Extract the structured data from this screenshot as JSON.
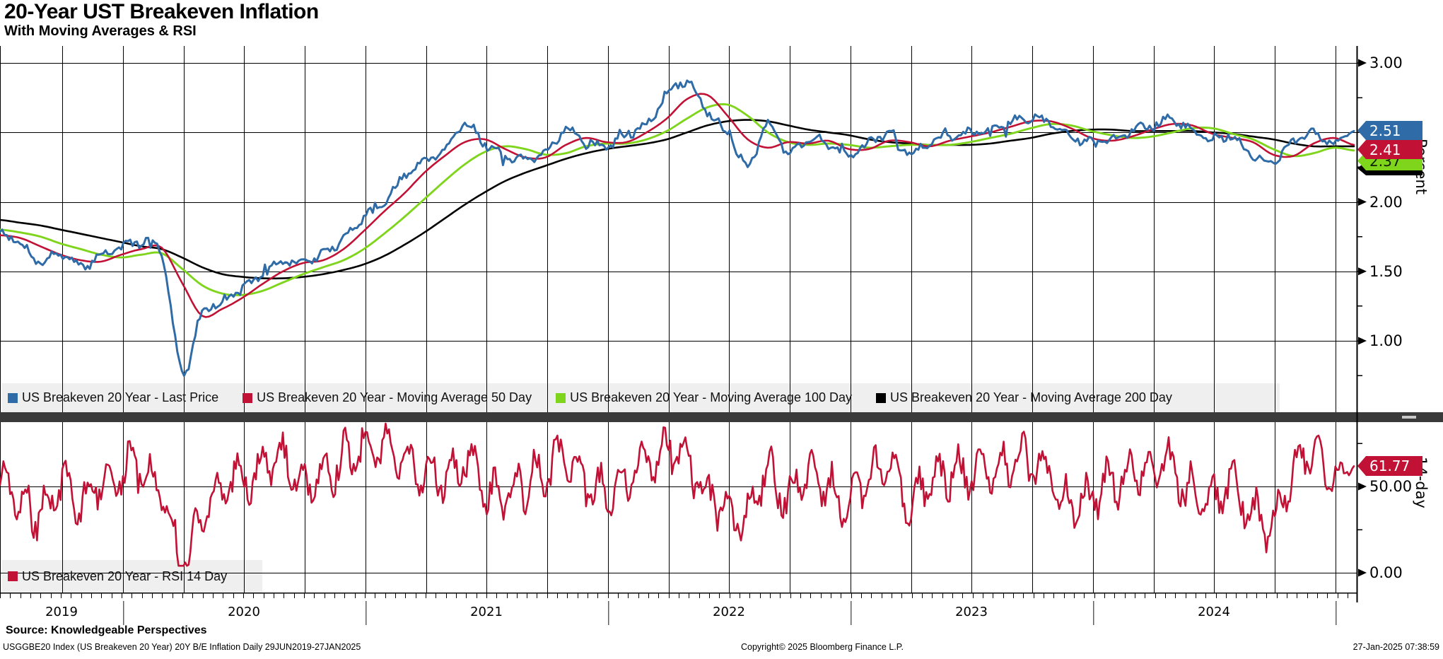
{
  "header": {
    "title": "20-Year UST Breakeven Inflation",
    "subtitle": "With Moving Averages & RSI"
  },
  "footer": {
    "source": "Source: Knowledgeable Perspectives",
    "security_info": "USGGBE20 Index (US Breakeven 20 Year) 20Y B/E Inflation  Daily 29JUN2019-27JAN2025",
    "copyright": "Copyright© 2025 Bloomberg Finance L.P.",
    "timestamp": "27-Jan-2025 07:38:59"
  },
  "colors": {
    "legend_bg": "#efefef",
    "divider": "#3a3a3a",
    "grid": "#000000"
  },
  "chart_data": [
    {
      "type": "line",
      "panel": "main",
      "title": "20-Year UST Breakeven Inflation",
      "ylabel": "Percent",
      "ylim": [
        0.7,
        3.12
      ],
      "y_gridlines": [
        3.0,
        2.5,
        2.0,
        1.5,
        1.0
      ],
      "y_tick_step": 0.25,
      "y_tick_labels": [
        "3.00",
        "2.00",
        "1.50",
        "1.00"
      ],
      "y_tick_label_values": [
        3.0,
        2.0,
        1.5,
        1.0
      ],
      "x_start": "29JUN2019",
      "x_end": "27JAN2025",
      "x_freq": "monthly",
      "x_year_labels": [
        "2019",
        "2020",
        "2021",
        "2022",
        "2023",
        "2024"
      ],
      "grid": "on",
      "legend_position": "bottom-strip",
      "series": [
        {
          "name": "US Breakeven 20 Year - Last Price",
          "color": "#2f6ba6",
          "style": "noisy",
          "badge": "2.51",
          "last_value": 2.51,
          "values": [
            1.78,
            1.7,
            1.57,
            1.63,
            1.53,
            1.62,
            1.67,
            1.71,
            1.63,
            0.78,
            1.2,
            1.28,
            1.38,
            1.47,
            1.57,
            1.56,
            1.63,
            1.73,
            1.9,
            2.0,
            2.18,
            2.3,
            2.38,
            2.56,
            2.42,
            2.32,
            2.3,
            2.36,
            2.52,
            2.43,
            2.4,
            2.48,
            2.56,
            2.76,
            2.86,
            2.66,
            2.5,
            2.26,
            2.56,
            2.36,
            2.45,
            2.42,
            2.33,
            2.42,
            2.49,
            2.36,
            2.43,
            2.47,
            2.5,
            2.53,
            2.57,
            2.61,
            2.56,
            2.47,
            2.43,
            2.45,
            2.51,
            2.55,
            2.59,
            2.51,
            2.45,
            2.47,
            2.33,
            2.29,
            2.43,
            2.49,
            2.43,
            2.51
          ]
        },
        {
          "name": "US Breakeven 20 Year - Moving Average 50 Day",
          "color": "#c11236",
          "style": "smooth",
          "badge": "2.41",
          "last_value": 2.41,
          "values": [
            1.76,
            1.74,
            1.68,
            1.62,
            1.58,
            1.57,
            1.62,
            1.66,
            1.67,
            1.42,
            1.18,
            1.23,
            1.31,
            1.41,
            1.5,
            1.56,
            1.58,
            1.66,
            1.79,
            1.93,
            2.06,
            2.21,
            2.33,
            2.43,
            2.45,
            2.38,
            2.32,
            2.32,
            2.41,
            2.46,
            2.43,
            2.43,
            2.5,
            2.6,
            2.74,
            2.77,
            2.62,
            2.45,
            2.39,
            2.43,
            2.42,
            2.44,
            2.38,
            2.38,
            2.44,
            2.43,
            2.4,
            2.44,
            2.47,
            2.5,
            2.54,
            2.58,
            2.58,
            2.53,
            2.46,
            2.44,
            2.47,
            2.52,
            2.56,
            2.55,
            2.49,
            2.46,
            2.43,
            2.34,
            2.33,
            2.42,
            2.46,
            2.41
          ]
        },
        {
          "name": "US Breakeven 20 Year - Moving Average 100 Day",
          "color": "#7fd41c",
          "style": "smooth",
          "badge": "2.37",
          "last_value": 2.37,
          "values": [
            1.8,
            1.78,
            1.75,
            1.7,
            1.66,
            1.62,
            1.6,
            1.62,
            1.63,
            1.52,
            1.4,
            1.34,
            1.33,
            1.36,
            1.42,
            1.48,
            1.53,
            1.58,
            1.66,
            1.77,
            1.89,
            2.02,
            2.15,
            2.27,
            2.36,
            2.4,
            2.38,
            2.34,
            2.35,
            2.4,
            2.42,
            2.42,
            2.45,
            2.51,
            2.6,
            2.68,
            2.7,
            2.62,
            2.5,
            2.43,
            2.41,
            2.42,
            2.41,
            2.39,
            2.4,
            2.41,
            2.41,
            2.41,
            2.43,
            2.46,
            2.49,
            2.53,
            2.56,
            2.55,
            2.51,
            2.48,
            2.46,
            2.47,
            2.5,
            2.53,
            2.53,
            2.49,
            2.45,
            2.38,
            2.33,
            2.35,
            2.39,
            2.37
          ]
        },
        {
          "name": "US Breakeven 20 Year - Moving Average 200 Day",
          "color": "#000000",
          "style": "smooth",
          "badge": "",
          "last_value": 2.4,
          "values": [
            1.87,
            1.85,
            1.83,
            1.8,
            1.77,
            1.74,
            1.71,
            1.68,
            1.66,
            1.6,
            1.53,
            1.48,
            1.46,
            1.45,
            1.45,
            1.46,
            1.48,
            1.51,
            1.55,
            1.61,
            1.69,
            1.78,
            1.88,
            1.98,
            2.07,
            2.15,
            2.21,
            2.26,
            2.31,
            2.35,
            2.38,
            2.4,
            2.42,
            2.45,
            2.5,
            2.55,
            2.58,
            2.59,
            2.58,
            2.55,
            2.52,
            2.5,
            2.48,
            2.45,
            2.43,
            2.42,
            2.41,
            2.41,
            2.41,
            2.42,
            2.44,
            2.46,
            2.49,
            2.51,
            2.52,
            2.52,
            2.51,
            2.51,
            2.51,
            2.51,
            2.5,
            2.49,
            2.47,
            2.45,
            2.42,
            2.4,
            2.4,
            2.4
          ]
        }
      ]
    },
    {
      "type": "line",
      "panel": "rsi",
      "ylabel": "14-day",
      "ylim": [
        0,
        100
      ],
      "y_gridlines": [
        50,
        0
      ],
      "y_tick_labels": [
        "50.00",
        "0.00"
      ],
      "y_tick_label_values": [
        50,
        0
      ],
      "y_ticks_minor": [
        75,
        25
      ],
      "x_start": "29JUN2019",
      "x_end": "27JAN2025",
      "x_freq": "monthly",
      "series": [
        {
          "name": "US Breakeven 20 Year - RSI 14 Day",
          "color": "#c11236",
          "style": "oscillator",
          "badge": "61.77",
          "last_value": 61.77,
          "values": [
            55,
            42,
            34,
            50,
            40,
            53,
            58,
            60,
            45,
            8,
            36,
            48,
            55,
            60,
            66,
            52,
            58,
            66,
            71,
            72,
            64,
            60,
            55,
            66,
            48,
            45,
            52,
            58,
            68,
            50,
            48,
            55,
            63,
            72,
            66,
            45,
            38,
            34,
            60,
            42,
            56,
            48,
            40,
            55,
            61,
            42,
            52,
            58,
            56,
            60,
            63,
            66,
            52,
            38,
            45,
            52,
            58,
            62,
            60,
            47,
            42,
            52,
            34,
            28,
            58,
            73,
            55,
            61.77
          ]
        }
      ]
    }
  ]
}
